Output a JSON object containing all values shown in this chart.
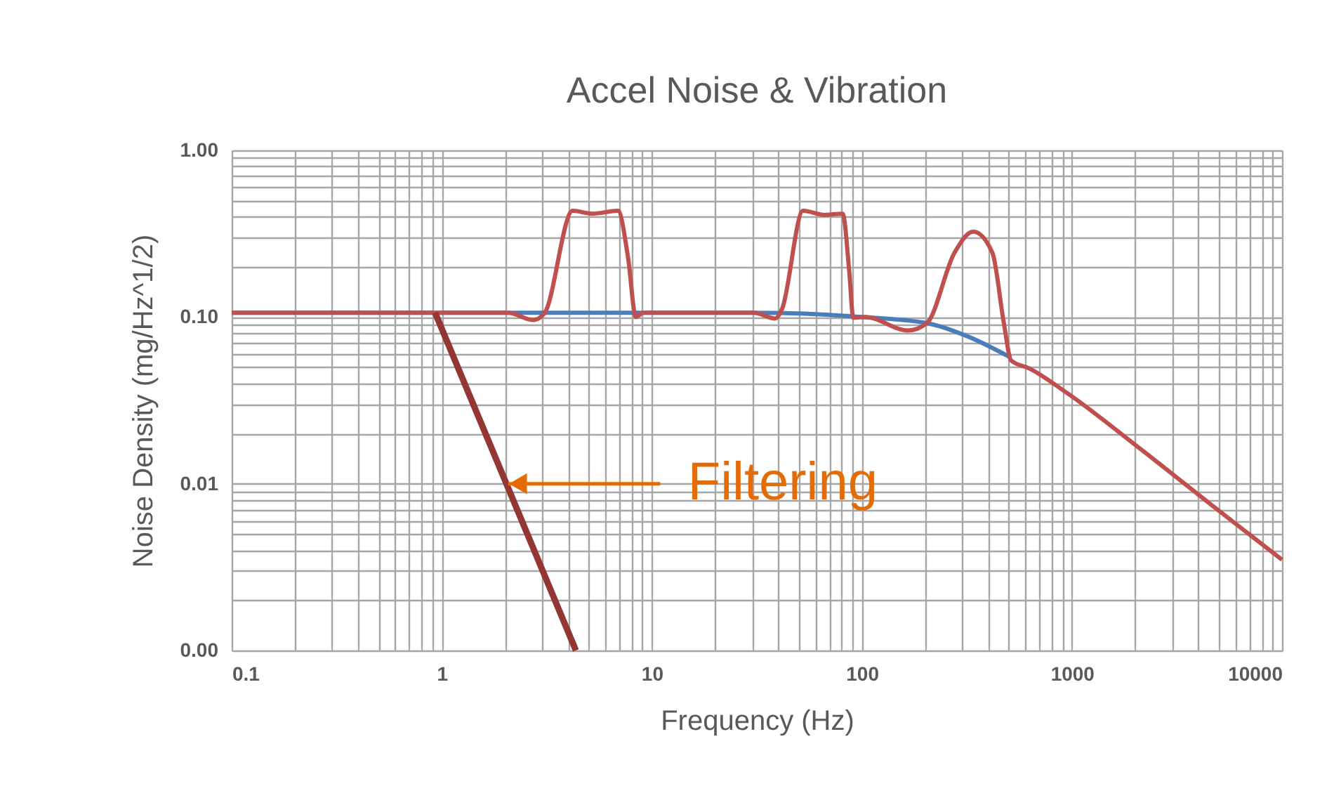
{
  "chart_data": {
    "type": "line",
    "title": "Accel Noise & Vibration",
    "xlabel": "Frequency (Hz)",
    "ylabel": "Noise Density (mg/Hz^1/2)",
    "log": "xy",
    "grid": true,
    "marker": "none",
    "line_style": "solid",
    "xlim": [
      0.1,
      10000
    ],
    "ylim": [
      0.001,
      1
    ],
    "xticks": [
      0.1,
      1,
      10,
      100,
      1000,
      10000,
      {
        "value": 0.2,
        "label": null
      },
      {
        "value": 0.3,
        "label": null
      },
      {
        "value": 0.4,
        "label": null
      },
      {
        "value": 0.5,
        "label": null
      },
      {
        "value": 0.6,
        "label": null
      },
      {
        "value": 0.7,
        "label": null
      },
      {
        "value": 0.8,
        "label": null
      },
      {
        "value": 0.9,
        "label": null
      },
      {
        "value": 2,
        "label": null
      },
      {
        "value": 3,
        "label": null
      },
      {
        "value": 4,
        "label": null
      },
      {
        "value": 5,
        "label": null
      },
      {
        "value": 6,
        "label": null
      },
      {
        "value": 7,
        "label": null
      },
      {
        "value": 8,
        "label": null
      },
      {
        "value": 9,
        "label": null
      },
      {
        "value": 20,
        "label": null
      },
      {
        "value": 30,
        "label": null
      },
      {
        "value": 40,
        "label": null
      },
      {
        "value": 50,
        "label": null
      },
      {
        "value": 60,
        "label": null
      },
      {
        "value": 70,
        "label": null
      },
      {
        "value": 80,
        "label": null
      },
      {
        "value": 90,
        "label": null
      },
      {
        "value": 200,
        "label": null
      },
      {
        "value": 300,
        "label": null
      },
      {
        "value": 400,
        "label": null
      },
      {
        "value": 500,
        "label": null
      },
      {
        "value": 600,
        "label": null
      },
      {
        "value": 700,
        "label": null
      },
      {
        "value": 800,
        "label": null
      },
      {
        "value": 900,
        "label": null
      },
      {
        "value": 2000,
        "label": null
      },
      {
        "value": 3000,
        "label": null
      },
      {
        "value": 4000,
        "label": null
      },
      {
        "value": 5000,
        "label": null
      },
      {
        "value": 6000,
        "label": null
      },
      {
        "value": 7000,
        "label": null
      },
      {
        "value": 8000,
        "label": null
      },
      {
        "value": 9000,
        "label": null
      }
    ],
    "yticks": [
      {
        "value": 0.001,
        "label": "0.00"
      },
      {
        "value": 0.01,
        "label": "0.01"
      },
      {
        "value": 0.1,
        "label": "0.10"
      },
      {
        "value": 1,
        "label": "1.00"
      },
      {
        "value": 0.002,
        "label": null
      },
      {
        "value": 0.003,
        "label": null
      },
      {
        "value": 0.004,
        "label": null
      },
      {
        "value": 0.005,
        "label": null
      },
      {
        "value": 0.006,
        "label": null
      },
      {
        "value": 0.007,
        "label": null
      },
      {
        "value": 0.008,
        "label": null
      },
      {
        "value": 0.009,
        "label": null
      },
      {
        "value": 0.02,
        "label": null
      },
      {
        "value": 0.03,
        "label": null
      },
      {
        "value": 0.04,
        "label": null
      },
      {
        "value": 0.05,
        "label": null
      },
      {
        "value": 0.06,
        "label": null
      },
      {
        "value": 0.07,
        "label": null
      },
      {
        "value": 0.08,
        "label": null
      },
      {
        "value": 0.09,
        "label": null
      },
      {
        "value": 0.2,
        "label": null
      },
      {
        "value": 0.3,
        "label": null
      },
      {
        "value": 0.4,
        "label": null
      },
      {
        "value": 0.5,
        "label": null
      },
      {
        "value": 0.6,
        "label": null
      },
      {
        "value": 0.7,
        "label": null
      },
      {
        "value": 0.8,
        "label": null
      },
      {
        "value": 0.9,
        "label": null
      }
    ],
    "series": [
      {
        "color": "#4a7ebb",
        "x": [
          0.1,
          1,
          10,
          30,
          50,
          99,
          204,
          323,
          513
        ],
        "values": [
          0.106,
          0.106,
          0.106,
          0.106,
          0.105,
          0.1,
          0.092,
          0.076,
          0.057
        ]
      },
      {
        "color": "#c0504d",
        "x": [
          0.1,
          1,
          2.07,
          2.73,
          3.09,
          4.2,
          5.2,
          6.9,
          7.7,
          8.4,
          9.1,
          20,
          30.7,
          38.6,
          41.7,
          52.5,
          66,
          81,
          87,
          91,
          104,
          166,
          204,
          276,
          339,
          418,
          474,
          513,
          630,
          948,
          2140,
          4650,
          10000
        ],
        "values": [
          0.106,
          0.106,
          0.106,
          0.096,
          0.106,
          0.434,
          0.417,
          0.434,
          0.229,
          0.1,
          0.106,
          0.106,
          0.106,
          0.098,
          0.112,
          0.434,
          0.41,
          0.417,
          0.19,
          0.099,
          0.1,
          0.083,
          0.092,
          0.243,
          0.325,
          0.243,
          0.092,
          0.055,
          0.049,
          0.035,
          0.016,
          0.0074,
          0.0035
        ]
      },
      {
        "color": "#943634",
        "x": [
          0.93,
          4.35
        ],
        "values": [
          0.106,
          0.001
        ]
      }
    ],
    "annotations": [
      {
        "text": "Filtering",
        "x": 2.07,
        "y": 0.01
      }
    ]
  }
}
